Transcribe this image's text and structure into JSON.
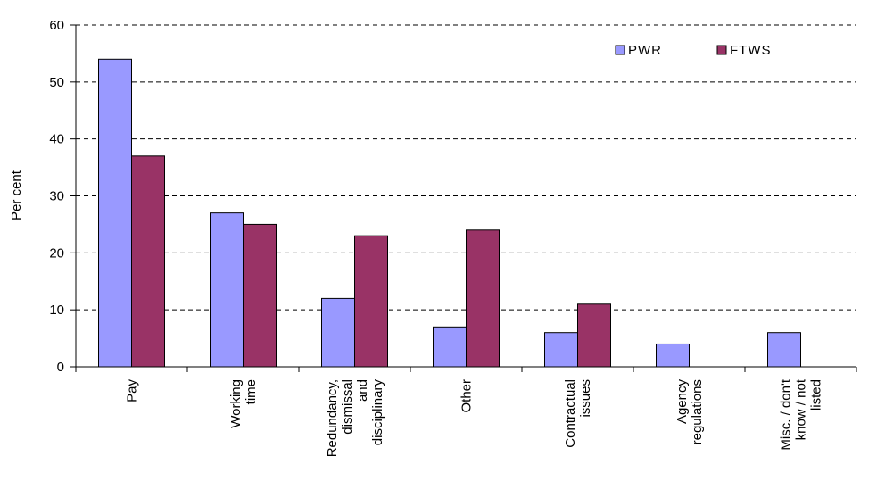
{
  "chart_data": {
    "type": "bar",
    "categories": [
      [
        "Pay"
      ],
      [
        "Working",
        "time"
      ],
      [
        "Redundancy,",
        "dismissal",
        "and",
        "disciplinary"
      ],
      [
        "Other"
      ],
      [
        "Contractual",
        "issues"
      ],
      [
        "Agency",
        "regulations"
      ],
      [
        "Misc. / don't",
        "know / not",
        "listed"
      ]
    ],
    "series": [
      {
        "name": "PWR",
        "color": "#9999ff",
        "values": [
          54,
          27,
          12,
          7,
          6,
          4,
          6
        ]
      },
      {
        "name": "FTWS",
        "color": "#993366",
        "values": [
          37,
          25,
          23,
          24,
          11,
          null,
          null
        ]
      }
    ],
    "ylabel": "Per cent",
    "ylim": [
      0,
      60
    ],
    "yticks": [
      "0",
      "10",
      "20",
      "30",
      "40",
      "50",
      "60"
    ],
    "grid": "horizontal dashed",
    "legend_position": "top-right"
  }
}
